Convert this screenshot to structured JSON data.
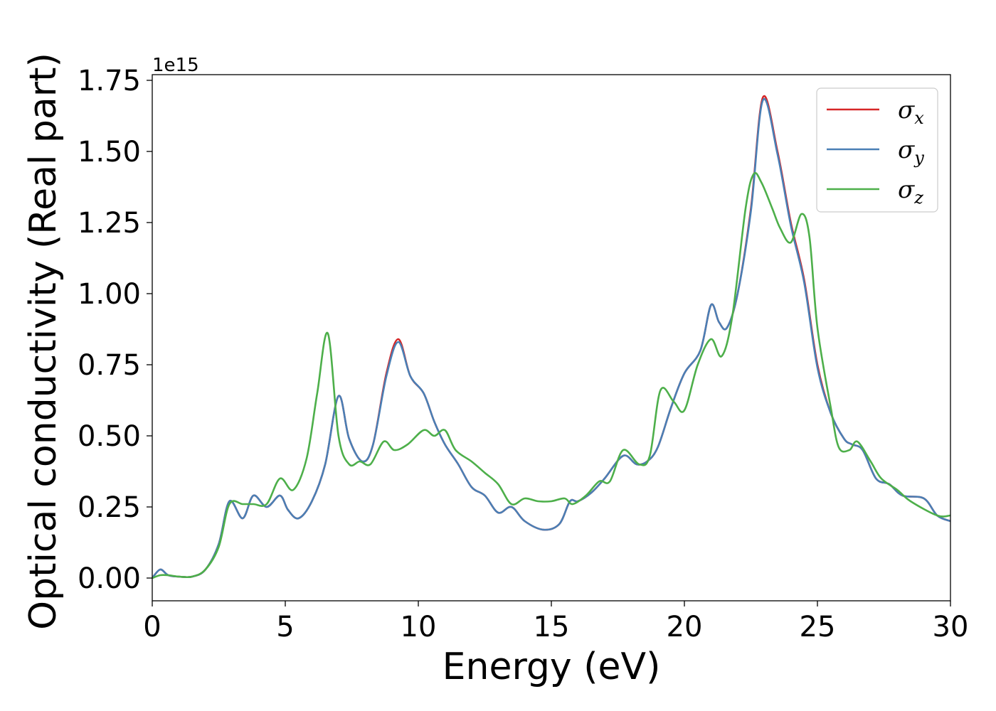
{
  "chart_data": {
    "type": "line",
    "xlabel": "Energy (eV)",
    "ylabel": "Optical conductivity (Real part)",
    "y_offset_text": "1e15",
    "y_scale_factor": 1000000000000000.0,
    "xlim": [
      0,
      30
    ],
    "ylim": [
      -0.08,
      1.77
    ],
    "x_ticks": [
      0,
      5,
      10,
      15,
      20,
      25,
      30
    ],
    "x_tick_labels": [
      "0",
      "5",
      "10",
      "15",
      "20",
      "25",
      "30"
    ],
    "y_ticks": [
      0.0,
      0.25,
      0.5,
      0.75,
      1.0,
      1.25,
      1.5,
      1.75
    ],
    "y_tick_labels": [
      "0.00",
      "0.25",
      "0.50",
      "0.75",
      "1.00",
      "1.25",
      "1.50",
      "1.75"
    ],
    "grid": false,
    "legend_position": "top-right",
    "series": [
      {
        "name": "σx",
        "name_base": "σ",
        "name_sub": "x",
        "color": "#d62728",
        "x": [
          0,
          0.3,
          0.6,
          1.0,
          1.5,
          2.0,
          2.5,
          2.9,
          3.4,
          3.8,
          4.3,
          4.8,
          5.1,
          5.5,
          6.0,
          6.5,
          7.0,
          7.4,
          7.9,
          8.3,
          8.8,
          9.25,
          9.7,
          10.2,
          10.6,
          11.0,
          11.5,
          12.0,
          12.5,
          13.0,
          13.5,
          14.0,
          14.7,
          15.3,
          15.7,
          16.0,
          16.5,
          17.0,
          17.7,
          18.2,
          18.6,
          19.0,
          19.5,
          20.0,
          20.6,
          21.0,
          21.3,
          21.6,
          22.0,
          22.5,
          22.95,
          23.5,
          24.0,
          24.5,
          25.0,
          25.5,
          26.0,
          26.3,
          26.7,
          27.2,
          27.7,
          28.2,
          29.0,
          29.5,
          30.0
        ],
        "y": [
          0.0,
          0.03,
          0.01,
          0.005,
          0.005,
          0.03,
          0.12,
          0.27,
          0.21,
          0.29,
          0.25,
          0.29,
          0.24,
          0.21,
          0.27,
          0.4,
          0.64,
          0.49,
          0.41,
          0.47,
          0.72,
          0.84,
          0.71,
          0.65,
          0.55,
          0.47,
          0.4,
          0.32,
          0.29,
          0.23,
          0.25,
          0.2,
          0.17,
          0.19,
          0.27,
          0.27,
          0.3,
          0.35,
          0.43,
          0.4,
          0.41,
          0.46,
          0.6,
          0.72,
          0.8,
          0.96,
          0.9,
          0.88,
          1.0,
          1.3,
          1.69,
          1.5,
          1.25,
          1.05,
          0.75,
          0.58,
          0.49,
          0.47,
          0.45,
          0.35,
          0.33,
          0.29,
          0.28,
          0.22,
          0.2
        ]
      },
      {
        "name": "σy",
        "name_base": "σ",
        "name_sub": "y",
        "color": "#4a7fb5",
        "x": [
          0,
          0.3,
          0.6,
          1.0,
          1.5,
          2.0,
          2.5,
          2.9,
          3.4,
          3.8,
          4.3,
          4.8,
          5.1,
          5.5,
          6.0,
          6.5,
          7.0,
          7.4,
          7.9,
          8.3,
          8.8,
          9.25,
          9.7,
          10.2,
          10.6,
          11.0,
          11.5,
          12.0,
          12.5,
          13.0,
          13.5,
          14.0,
          14.7,
          15.3,
          15.7,
          16.0,
          16.5,
          17.0,
          17.7,
          18.2,
          18.6,
          19.0,
          19.5,
          20.0,
          20.6,
          21.0,
          21.3,
          21.6,
          22.0,
          22.5,
          22.95,
          23.5,
          24.0,
          24.5,
          25.0,
          25.5,
          26.0,
          26.3,
          26.7,
          27.2,
          27.7,
          28.2,
          29.0,
          29.5,
          30.0
        ],
        "y": [
          0.0,
          0.03,
          0.01,
          0.005,
          0.005,
          0.03,
          0.12,
          0.27,
          0.21,
          0.29,
          0.25,
          0.29,
          0.24,
          0.21,
          0.27,
          0.4,
          0.64,
          0.49,
          0.41,
          0.47,
          0.71,
          0.83,
          0.71,
          0.65,
          0.55,
          0.47,
          0.4,
          0.32,
          0.29,
          0.23,
          0.25,
          0.2,
          0.17,
          0.19,
          0.27,
          0.27,
          0.3,
          0.35,
          0.43,
          0.4,
          0.41,
          0.46,
          0.6,
          0.72,
          0.8,
          0.96,
          0.9,
          0.88,
          1.0,
          1.29,
          1.68,
          1.49,
          1.24,
          1.04,
          0.74,
          0.58,
          0.49,
          0.47,
          0.45,
          0.35,
          0.33,
          0.29,
          0.28,
          0.22,
          0.2
        ]
      },
      {
        "name": "σz",
        "name_base": "σ",
        "name_sub": "z",
        "color": "#4daf4a",
        "x": [
          0,
          0.3,
          0.6,
          1.0,
          1.5,
          2.0,
          2.5,
          2.9,
          3.4,
          3.8,
          4.3,
          4.8,
          5.3,
          5.8,
          6.2,
          6.6,
          7.0,
          7.4,
          7.8,
          8.2,
          8.7,
          9.1,
          9.6,
          10.2,
          10.6,
          11.0,
          11.4,
          12.0,
          12.5,
          13.0,
          13.5,
          14.0,
          14.5,
          15.0,
          15.5,
          15.8,
          16.3,
          16.8,
          17.2,
          17.7,
          18.3,
          18.7,
          19.1,
          19.6,
          20.0,
          20.5,
          21.0,
          21.4,
          21.8,
          22.3,
          22.6,
          22.9,
          23.3,
          23.6,
          24.0,
          24.4,
          24.7,
          25.0,
          25.5,
          25.8,
          26.2,
          26.5,
          27.0,
          27.4,
          28.0,
          28.5,
          29.5,
          30.0
        ],
        "y": [
          0.0,
          0.01,
          0.01,
          0.005,
          0.005,
          0.03,
          0.11,
          0.26,
          0.26,
          0.26,
          0.26,
          0.35,
          0.31,
          0.42,
          0.65,
          0.86,
          0.5,
          0.4,
          0.41,
          0.4,
          0.48,
          0.45,
          0.47,
          0.52,
          0.5,
          0.52,
          0.45,
          0.41,
          0.37,
          0.33,
          0.26,
          0.28,
          0.27,
          0.27,
          0.28,
          0.26,
          0.29,
          0.34,
          0.34,
          0.45,
          0.4,
          0.43,
          0.66,
          0.62,
          0.59,
          0.75,
          0.84,
          0.78,
          0.92,
          1.3,
          1.42,
          1.39,
          1.3,
          1.23,
          1.18,
          1.28,
          1.2,
          0.88,
          0.6,
          0.46,
          0.45,
          0.48,
          0.41,
          0.35,
          0.31,
          0.27,
          0.22,
          0.22
        ]
      }
    ]
  }
}
